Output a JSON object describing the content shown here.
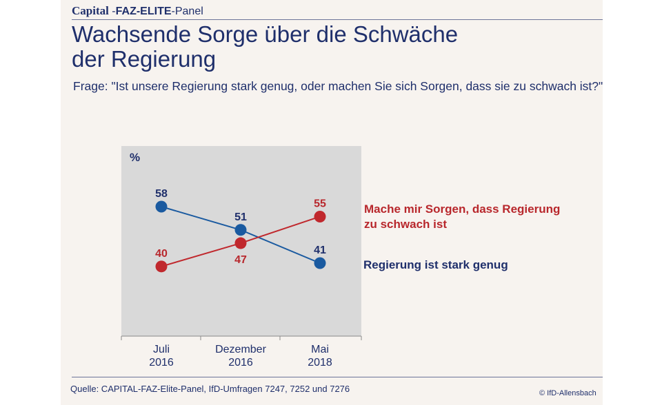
{
  "header": {
    "capital": "Capital",
    "dash": " -",
    "faz": "FAZ-ELITE",
    "panel": "-Panel"
  },
  "title_lines": [
    "Wachsende Sorge über die Schwäche",
    "der Regierung"
  ],
  "question": "Frage:  \"Ist unsere Regierung stark genug, oder machen Sie sich Sorgen, dass sie zu schwach ist?\"",
  "source": "Quelle: CAPITAL-FAZ-Elite-Panel, IfD-Umfragen 7247, 7252 und 7276",
  "copyright": "© IfD-Allensbach",
  "chart_data": {
    "type": "line",
    "ylabel": "%",
    "ylim": [
      30,
      70
    ],
    "categories": [
      [
        "Juli",
        "2016"
      ],
      [
        "Dezember",
        "2016"
      ],
      [
        "Mai",
        "2018"
      ]
    ],
    "series": [
      {
        "name": "Regierung ist stark genug",
        "legend_lines": [
          "Regierung ist stark genug"
        ],
        "color": "#1a5aa0",
        "label_color": "#1f2f6b",
        "values": [
          58,
          51,
          41
        ],
        "label_pos": [
          "above",
          "above",
          "above"
        ]
      },
      {
        "name": "Mache mir Sorgen, dass Regierung zu schwach ist",
        "legend_lines": [
          "Mache mir Sorgen, dass Regierung",
          "zu schwach ist"
        ],
        "color": "#c0282d",
        "label_color": "#b8272c",
        "values": [
          40,
          47,
          55
        ],
        "label_pos": [
          "above",
          "below",
          "above"
        ]
      }
    ],
    "grid": false
  }
}
